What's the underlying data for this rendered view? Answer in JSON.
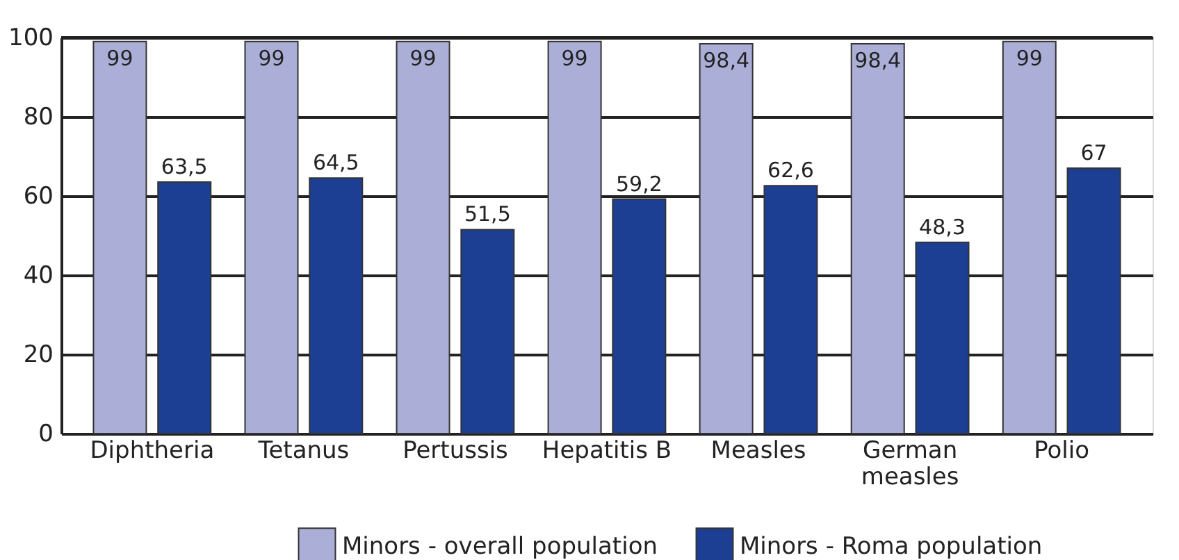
{
  "chart_data": {
    "type": "bar",
    "categories": [
      "Diphtheria",
      "Tetanus",
      "Pertussis",
      "Hepatitis B",
      "Measles",
      "German measles",
      "Polio"
    ],
    "series": [
      {
        "name": "Minors - overall population",
        "color": "#abaed6",
        "values": [
          99,
          99,
          99,
          99,
          98.4,
          98.4,
          99
        ],
        "value_labels": [
          "99",
          "99",
          "99",
          "99",
          "98,4",
          "98,4",
          "99"
        ]
      },
      {
        "name": "Minors - Roma population",
        "color": "#1c3f94",
        "values": [
          63.5,
          64.5,
          51.5,
          59.2,
          62.6,
          48.3,
          67
        ],
        "value_labels": [
          "63,5",
          "64,5",
          "51,5",
          "59,2",
          "62,6",
          "48,3",
          "67"
        ]
      }
    ],
    "ylim": [
      0,
      100
    ],
    "yticks": [
      0,
      20,
      40,
      60,
      80,
      100
    ],
    "grid": "y",
    "legend": "bottom"
  }
}
